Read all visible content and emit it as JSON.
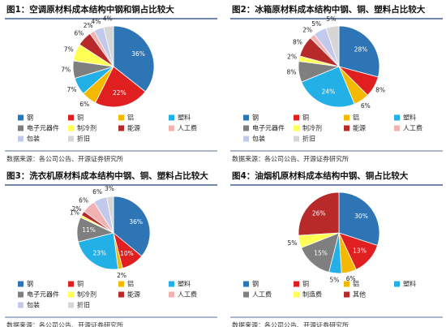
{
  "chart_data": [
    {
      "type": "pie",
      "title": "图1：空调原材料成本结构中钢和铜占比较大",
      "categories": [
        "钢",
        "铜",
        "铝",
        "塑料",
        "电子元器件",
        "制冷剂",
        "能源",
        "人工费",
        "包装",
        "折旧"
      ],
      "values": [
        36,
        22,
        6,
        7,
        7,
        7,
        6,
        2,
        4,
        4
      ],
      "value_labels": [
        "36%",
        "22%",
        "6%",
        "7%",
        "7%",
        "7%",
        "6%",
        "2%",
        "4%",
        "4%"
      ],
      "colors": [
        "#2e75b6",
        "#e02020",
        "#f5b800",
        "#22b0e6",
        "#7f7f7f",
        "#ffff55",
        "#b82a2a",
        "#f2b2b2",
        "#c3c9ea",
        "#d6d6d6"
      ],
      "source": "数据来源：各公司公告、开源证券研究所"
    },
    {
      "type": "pie",
      "title": "图2：冰箱原材料成本结构中钢、铜、塑料占比较大",
      "categories": [
        "钢",
        "铜",
        "铝",
        "塑料",
        "电子元器件",
        "制冷剂",
        "能源",
        "人工费",
        "包装",
        "折旧"
      ],
      "values": [
        28,
        8,
        6,
        24,
        8,
        2,
        8,
        2,
        5,
        5
      ],
      "value_labels": [
        "28%",
        "8%",
        "6%",
        "24%",
        "8%",
        "2%",
        "8%",
        "2%",
        "5%",
        "5%"
      ],
      "colors": [
        "#2e75b6",
        "#e02020",
        "#f5b800",
        "#22b0e6",
        "#7f7f7f",
        "#ffff55",
        "#b82a2a",
        "#f2b2b2",
        "#c3c9ea",
        "#d6d6d6"
      ],
      "source": "数据来源：各公司公告、开源证券研究所"
    },
    {
      "type": "pie",
      "title": "图3：洗衣机原材料成本结构中钢、铜、塑料占比较大",
      "categories": [
        "钢",
        "铜",
        "铝",
        "塑料",
        "电子元器件",
        "制冷剂",
        "能源",
        "人工费",
        "包装",
        "折旧"
      ],
      "values": [
        36,
        10,
        2,
        23,
        11,
        1,
        2,
        6,
        6,
        3
      ],
      "value_labels": [
        "36%",
        "10%",
        "2%",
        "23%",
        "11%",
        "1%",
        "2%",
        "6%",
        "6%",
        "3%"
      ],
      "colors": [
        "#2e75b6",
        "#e02020",
        "#f5b800",
        "#22b0e6",
        "#7f7f7f",
        "#ffff55",
        "#b82a2a",
        "#f2b2b2",
        "#c3c9ea",
        "#d6d6d6"
      ],
      "source": "数据来源：各公司公告、开源证券研究所"
    },
    {
      "type": "pie",
      "title": "图4：油烟机原材料成本结构中钢、铜占比较大",
      "categories": [
        "钢",
        "铜",
        "铝",
        "塑料",
        "人工费",
        "制造费",
        "其他"
      ],
      "values": [
        30,
        13,
        6,
        5,
        15,
        5,
        26
      ],
      "value_labels": [
        "30%",
        "13%",
        "6%",
        "5%",
        "15%",
        "5%",
        "26%"
      ],
      "colors": [
        "#2e75b6",
        "#e02020",
        "#f5b800",
        "#22b0e6",
        "#7f7f7f",
        "#ffff55",
        "#b82a2a"
      ],
      "source": "数据来源：各公司公告、开源证券研究所"
    }
  ]
}
